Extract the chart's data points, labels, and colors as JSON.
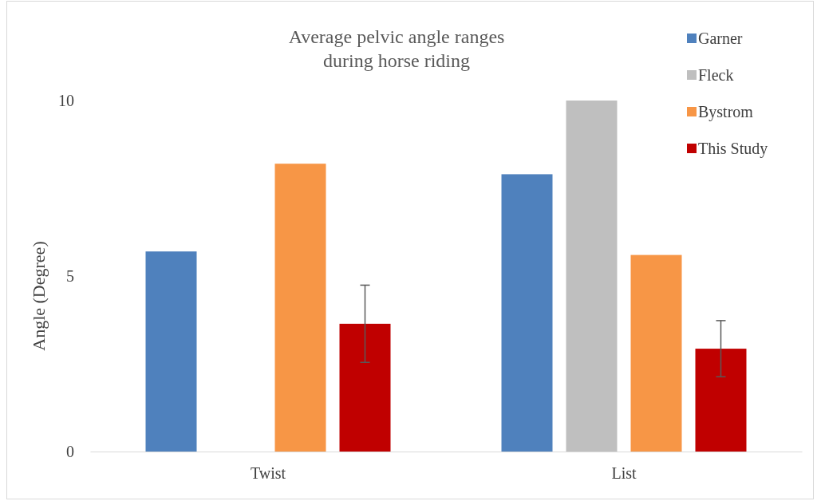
{
  "chart_data": {
    "type": "bar",
    "title": "Average pelvic angle ranges\nduring horse riding",
    "ylabel": "Angle (Degree)",
    "categories": [
      "Twist",
      "List"
    ],
    "series": [
      {
        "name": "Garner",
        "color": "#4f81bd",
        "values": [
          5.7,
          7.9
        ]
      },
      {
        "name": "Fleck",
        "color": "#bfbfbf",
        "values": [
          null,
          10
        ]
      },
      {
        "name": "Bystrom",
        "color": "#f79646",
        "values": [
          8.2,
          5.6
        ]
      },
      {
        "name": "This Study",
        "color": "#c00000",
        "values": [
          3.64,
          2.93
        ],
        "errors": [
          1.1,
          0.8
        ]
      }
    ],
    "ylim": [
      0,
      10
    ],
    "yticks": [
      0,
      5,
      10
    ],
    "grid": false,
    "legend": "top right"
  }
}
